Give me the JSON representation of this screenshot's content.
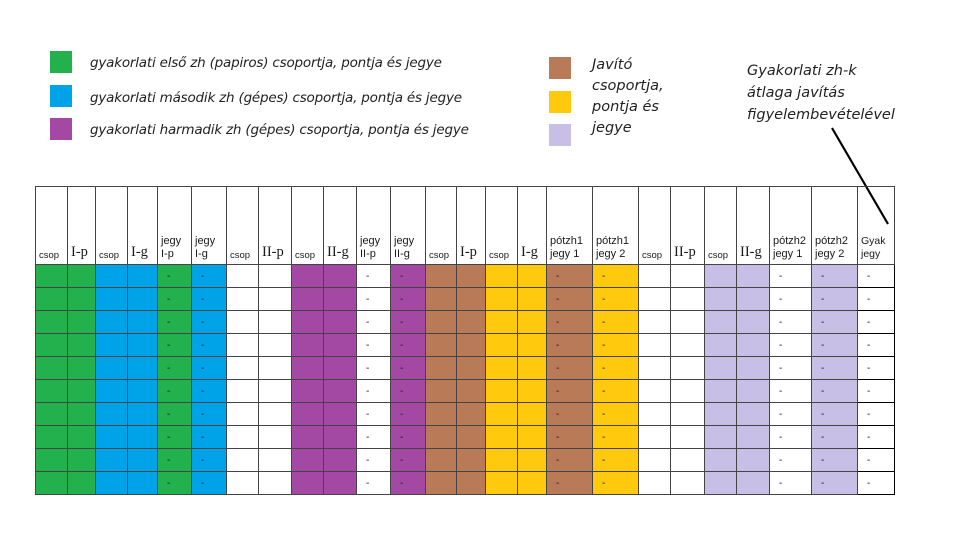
{
  "colors": {
    "green": "#22b14c",
    "blue": "#00a2e8",
    "purple": "#a349a4",
    "brown": "#b97a57",
    "yellow": "#ffc90e",
    "lavender": "#c8bfe7"
  },
  "legend": {
    "green": "gyakorlati első zh (papiros) csoportja, pontja és jegye",
    "blue": "gyakorlati második zh (gépes) csoportja, pontja és jegye",
    "purple": "gyakorlati harmadik zh (gépes) csoportja, pontja és jegye",
    "javito": [
      "Javító",
      "csoportja,",
      "pontja és",
      "jegye"
    ]
  },
  "note": [
    "Gyakorlati zh-k",
    "átlaga javítás",
    "figyelembevételével"
  ],
  "table": {
    "headers": [
      {
        "text": "csop",
        "style": "sm",
        "fill": "green"
      },
      {
        "text": "I-p",
        "style": "rom",
        "fill": "green"
      },
      {
        "text": "csop",
        "style": "sm",
        "fill": "blue"
      },
      {
        "text": "I-g",
        "style": "rom",
        "fill": "blue"
      },
      {
        "lines": [
          "jegy",
          "I-p"
        ],
        "style": "two",
        "fill": "green",
        "dash": true
      },
      {
        "lines": [
          "jegy",
          "I-g"
        ],
        "style": "two",
        "fill": "blue",
        "dash": true
      },
      {
        "text": "csop",
        "style": "sm",
        "fill": "white"
      },
      {
        "text": "II-p",
        "style": "rom",
        "fill": "white"
      },
      {
        "text": "csop",
        "style": "sm",
        "fill": "purple"
      },
      {
        "text": "II-g",
        "style": "rom",
        "fill": "purple"
      },
      {
        "lines": [
          "jegy",
          "II-p"
        ],
        "style": "two",
        "fill": "white",
        "dash": true
      },
      {
        "lines": [
          "jegy",
          "II-g"
        ],
        "style": "two",
        "fill": "purple",
        "dash": true
      },
      {
        "text": "csop",
        "style": "sm",
        "fill": "brown"
      },
      {
        "text": "I-p",
        "style": "rom",
        "fill": "brown"
      },
      {
        "text": "csop",
        "style": "sm",
        "fill": "yellow"
      },
      {
        "text": "I-g",
        "style": "rom",
        "fill": "yellow"
      },
      {
        "lines": [
          "pótzh1",
          "jegy 1"
        ],
        "style": "two",
        "fill": "brown",
        "dash": true
      },
      {
        "lines": [
          "pótzh1",
          "jegy 2"
        ],
        "style": "two",
        "fill": "yellow",
        "dash": true
      },
      {
        "text": "csop",
        "style": "sm",
        "fill": "white"
      },
      {
        "text": "II-p",
        "style": "rom",
        "fill": "white"
      },
      {
        "text": "csop",
        "style": "sm",
        "fill": "lavender"
      },
      {
        "text": "II-g",
        "style": "rom",
        "fill": "lavender"
      },
      {
        "lines": [
          "pótzh2",
          "jegy 1"
        ],
        "style": "two",
        "fill": "white",
        "dash": true
      },
      {
        "lines": [
          "pótzh2",
          "jegy 2"
        ],
        "style": "two",
        "fill": "lavender",
        "dash": true
      },
      {
        "lines": [
          "Gyak",
          "jegy"
        ],
        "style": "gyak",
        "fill": "gyak",
        "dash": true
      }
    ],
    "row_count": 10,
    "cell_value": "-"
  }
}
